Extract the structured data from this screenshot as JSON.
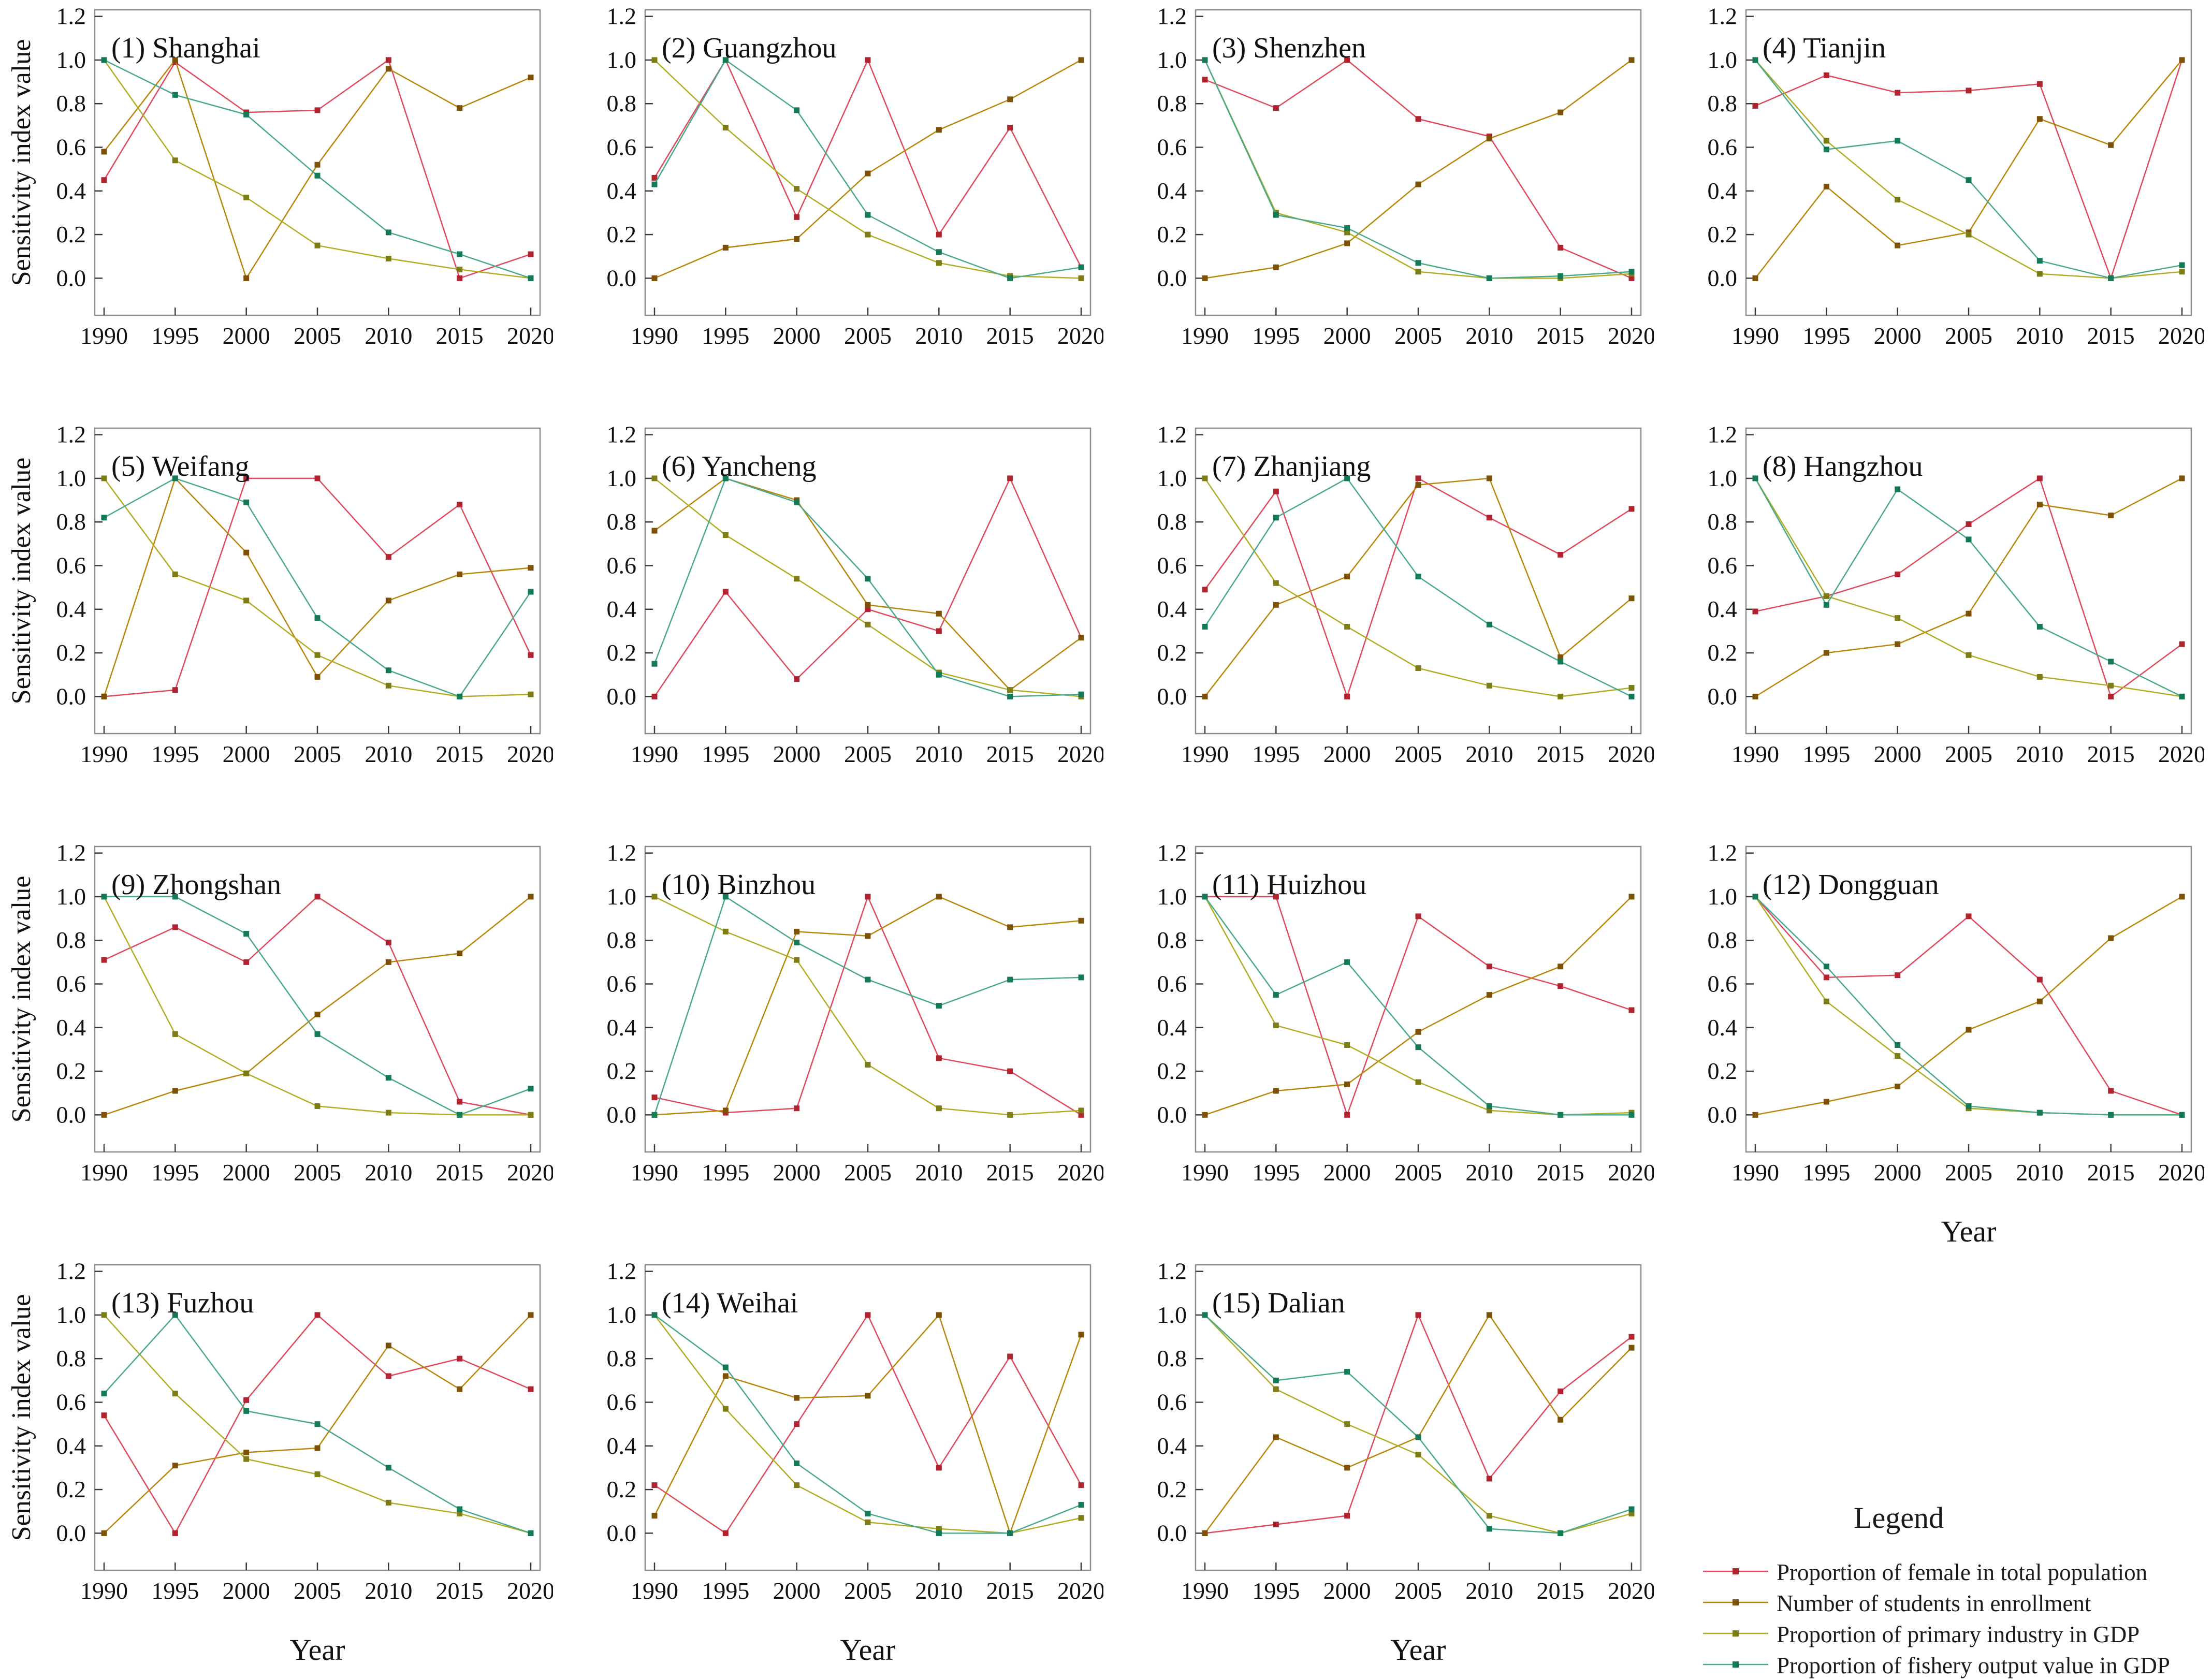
{
  "figure": {
    "ylabel": "Sensitivity index value",
    "xlabel": "Year",
    "legend_title": "Legend",
    "background": "#ffffff",
    "box_color": "#8c8c8c"
  },
  "chart_data": {
    "type": "line",
    "x": [
      1990,
      1995,
      2000,
      2005,
      2010,
      2015,
      2020
    ],
    "ylim": [
      0.0,
      1.2
    ],
    "y_ticks": [
      0.0,
      0.2,
      0.4,
      0.6,
      0.8,
      1.0,
      1.2
    ],
    "grid": "off",
    "legend_position": "fourth-row-fourth-column",
    "series_meta": [
      {
        "name": "female",
        "label": "Proportion of female in total population",
        "line_color": "#e0485c",
        "marker_color": "#b0232f"
      },
      {
        "name": "students",
        "label": "Number of students in enrollment",
        "line_color": "#b8860b",
        "marker_color": "#7d5206"
      },
      {
        "name": "primary",
        "label": "Proportion of primary industry in GDP",
        "line_color": "#b0ad25",
        "marker_color": "#7e7c14"
      },
      {
        "name": "fishery",
        "label": "Proportion of fishery output value in GDP",
        "line_color": "#48a98b",
        "marker_color": "#147a55"
      }
    ],
    "panels": [
      {
        "title": "(1) Shanghai",
        "show_ylabel": true,
        "show_xlabel": false,
        "series": {
          "female": [
            0.45,
            0.99,
            0.76,
            0.77,
            1.0,
            0.0,
            0.11
          ],
          "students": [
            0.58,
            1.0,
            0.0,
            0.52,
            0.96,
            0.78,
            0.92
          ],
          "primary": [
            1.0,
            0.54,
            0.37,
            0.15,
            0.09,
            0.04,
            0.0
          ],
          "fishery": [
            1.0,
            0.84,
            0.75,
            0.47,
            0.21,
            0.11,
            0.0
          ]
        }
      },
      {
        "title": "(2) Guangzhou",
        "show_ylabel": false,
        "show_xlabel": false,
        "series": {
          "female": [
            0.46,
            1.0,
            0.28,
            1.0,
            0.2,
            0.69,
            0.05
          ],
          "students": [
            0.0,
            0.14,
            0.18,
            0.48,
            0.68,
            0.82,
            1.0
          ],
          "primary": [
            1.0,
            0.69,
            0.41,
            0.2,
            0.07,
            0.01,
            0.0
          ],
          "fishery": [
            0.43,
            1.0,
            0.77,
            0.29,
            0.12,
            0.0,
            0.05
          ]
        }
      },
      {
        "title": "(3) Shenzhen",
        "show_ylabel": false,
        "show_xlabel": false,
        "series": {
          "female": [
            0.91,
            0.78,
            1.0,
            0.73,
            0.65,
            0.14,
            0.0
          ],
          "students": [
            0.0,
            0.05,
            0.16,
            0.43,
            0.64,
            0.76,
            1.0
          ],
          "primary": [
            1.0,
            0.3,
            0.21,
            0.03,
            0.0,
            0.0,
            0.02
          ],
          "fishery": [
            1.0,
            0.29,
            0.23,
            0.07,
            0.0,
            0.01,
            0.03
          ]
        }
      },
      {
        "title": "(4) Tianjin",
        "show_ylabel": false,
        "show_xlabel": false,
        "series": {
          "female": [
            0.79,
            0.93,
            0.85,
            0.86,
            0.89,
            0.0,
            1.0
          ],
          "students": [
            0.0,
            0.42,
            0.15,
            0.21,
            0.73,
            0.61,
            1.0
          ],
          "primary": [
            1.0,
            0.63,
            0.36,
            0.2,
            0.02,
            0.0,
            0.03
          ],
          "fishery": [
            1.0,
            0.59,
            0.63,
            0.45,
            0.08,
            0.0,
            0.06
          ]
        }
      },
      {
        "title": "(5) Weifang",
        "show_ylabel": true,
        "show_xlabel": false,
        "series": {
          "female": [
            0.0,
            0.03,
            1.0,
            1.0,
            0.64,
            0.88,
            0.19
          ],
          "students": [
            0.0,
            1.0,
            0.66,
            0.09,
            0.44,
            0.56,
            0.59
          ],
          "primary": [
            1.0,
            0.56,
            0.44,
            0.19,
            0.05,
            0.0,
            0.01
          ],
          "fishery": [
            0.82,
            1.0,
            0.89,
            0.36,
            0.12,
            0.0,
            0.48
          ]
        }
      },
      {
        "title": "(6) Yancheng",
        "show_ylabel": false,
        "show_xlabel": false,
        "series": {
          "female": [
            0.0,
            0.48,
            0.08,
            0.4,
            0.3,
            1.0,
            0.27
          ],
          "students": [
            0.76,
            1.0,
            0.9,
            0.42,
            0.38,
            0.03,
            0.27
          ],
          "primary": [
            1.0,
            0.74,
            0.54,
            0.33,
            0.11,
            0.03,
            0.0
          ],
          "fishery": [
            0.15,
            1.0,
            0.89,
            0.54,
            0.1,
            0.0,
            0.01
          ]
        }
      },
      {
        "title": "(7) Zhanjiang",
        "show_ylabel": false,
        "show_xlabel": false,
        "series": {
          "female": [
            0.49,
            0.94,
            0.0,
            1.0,
            0.82,
            0.65,
            0.86
          ],
          "students": [
            0.0,
            0.42,
            0.55,
            0.97,
            1.0,
            0.18,
            0.45
          ],
          "primary": [
            1.0,
            0.52,
            0.32,
            0.13,
            0.05,
            0.0,
            0.04
          ],
          "fishery": [
            0.32,
            0.82,
            1.0,
            0.55,
            0.33,
            0.16,
            0.0
          ]
        }
      },
      {
        "title": "(8) Hangzhou",
        "show_ylabel": false,
        "show_xlabel": false,
        "series": {
          "female": [
            0.39,
            0.46,
            0.56,
            0.79,
            1.0,
            0.0,
            0.24
          ],
          "students": [
            0.0,
            0.2,
            0.24,
            0.38,
            0.88,
            0.83,
            1.0
          ],
          "primary": [
            1.0,
            0.46,
            0.36,
            0.19,
            0.09,
            0.05,
            0.0
          ],
          "fishery": [
            1.0,
            0.42,
            0.95,
            0.72,
            0.32,
            0.16,
            0.0
          ]
        }
      },
      {
        "title": "(9) Zhongshan",
        "show_ylabel": true,
        "show_xlabel": false,
        "series": {
          "female": [
            0.71,
            0.86,
            0.7,
            1.0,
            0.79,
            0.06,
            0.0
          ],
          "students": [
            0.0,
            0.11,
            0.19,
            0.46,
            0.7,
            0.74,
            1.0
          ],
          "primary": [
            1.0,
            0.37,
            0.19,
            0.04,
            0.01,
            0.0,
            0.0
          ],
          "fishery": [
            1.0,
            1.0,
            0.83,
            0.37,
            0.17,
            0.0,
            0.12
          ]
        }
      },
      {
        "title": "(10) Binzhou",
        "show_ylabel": false,
        "show_xlabel": false,
        "series": {
          "female": [
            0.08,
            0.01,
            0.03,
            1.0,
            0.26,
            0.2,
            0.0
          ],
          "students": [
            0.0,
            0.02,
            0.84,
            0.82,
            1.0,
            0.86,
            0.89
          ],
          "primary": [
            1.0,
            0.84,
            0.71,
            0.23,
            0.03,
            0.0,
            0.02
          ],
          "fishery": [
            0.0,
            1.0,
            0.79,
            0.62,
            0.5,
            0.62,
            0.63
          ]
        }
      },
      {
        "title": "(11) Huizhou",
        "show_ylabel": false,
        "show_xlabel": false,
        "series": {
          "female": [
            1.0,
            1.0,
            0.0,
            0.91,
            0.68,
            0.59,
            0.48
          ],
          "students": [
            0.0,
            0.11,
            0.14,
            0.38,
            0.55,
            0.68,
            1.0
          ],
          "primary": [
            1.0,
            0.41,
            0.32,
            0.15,
            0.02,
            0.0,
            0.01
          ],
          "fishery": [
            1.0,
            0.55,
            0.7,
            0.31,
            0.04,
            0.0,
            0.0
          ]
        }
      },
      {
        "title": "(12) Dongguan",
        "show_ylabel": false,
        "show_xlabel": true,
        "series": {
          "female": [
            1.0,
            0.63,
            0.64,
            0.91,
            0.62,
            0.11,
            0.0
          ],
          "students": [
            0.0,
            0.06,
            0.13,
            0.39,
            0.52,
            0.81,
            1.0
          ],
          "primary": [
            1.0,
            0.52,
            0.27,
            0.03,
            0.01,
            0.0,
            0.0
          ],
          "fishery": [
            1.0,
            0.68,
            0.32,
            0.04,
            0.01,
            0.0,
            0.0
          ]
        }
      },
      {
        "title": "(13) Fuzhou",
        "show_ylabel": true,
        "show_xlabel": true,
        "series": {
          "female": [
            0.54,
            0.0,
            0.61,
            1.0,
            0.72,
            0.8,
            0.66
          ],
          "students": [
            0.0,
            0.31,
            0.37,
            0.39,
            0.86,
            0.66,
            1.0
          ],
          "primary": [
            1.0,
            0.64,
            0.34,
            0.27,
            0.14,
            0.09,
            0.0
          ],
          "fishery": [
            0.64,
            1.0,
            0.56,
            0.5,
            0.3,
            0.11,
            0.0
          ]
        }
      },
      {
        "title": "(14) Weihai",
        "show_ylabel": false,
        "show_xlabel": true,
        "series": {
          "female": [
            0.22,
            0.0,
            0.5,
            1.0,
            0.3,
            0.81,
            0.22
          ],
          "students": [
            0.08,
            0.72,
            0.62,
            0.63,
            1.0,
            0.0,
            0.91
          ],
          "primary": [
            1.0,
            0.57,
            0.22,
            0.05,
            0.02,
            0.0,
            0.07
          ],
          "fishery": [
            1.0,
            0.76,
            0.32,
            0.09,
            0.0,
            0.0,
            0.13
          ]
        }
      },
      {
        "title": "(15) Dalian",
        "show_ylabel": false,
        "show_xlabel": true,
        "series": {
          "female": [
            0.0,
            0.04,
            0.08,
            1.0,
            0.25,
            0.65,
            0.9
          ],
          "students": [
            0.0,
            0.44,
            0.3,
            0.44,
            1.0,
            0.52,
            0.85
          ],
          "primary": [
            1.0,
            0.66,
            0.5,
            0.36,
            0.08,
            0.0,
            0.09
          ],
          "fishery": [
            1.0,
            0.7,
            0.74,
            0.44,
            0.02,
            0.0,
            0.11
          ]
        }
      }
    ]
  }
}
